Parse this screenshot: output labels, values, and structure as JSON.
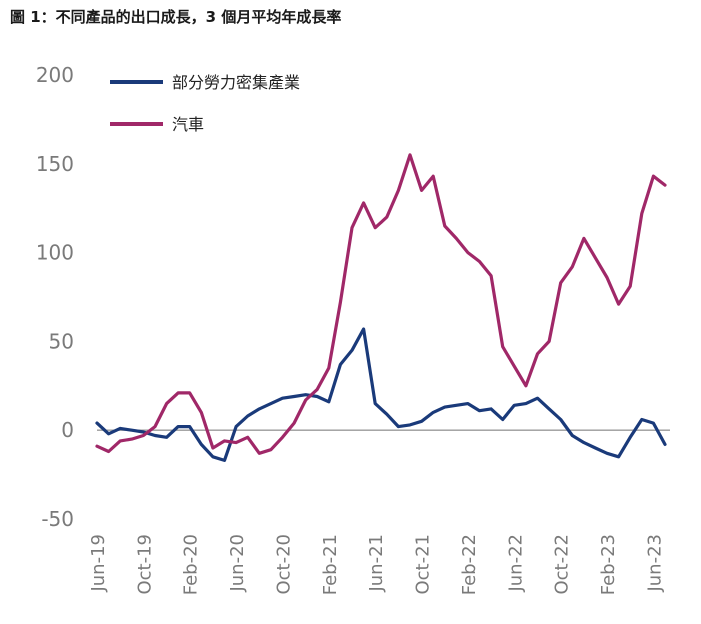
{
  "title": "圖 1：不同產品的出口成長，3 個月平均年成長率",
  "chart_data": {
    "type": "line",
    "ylim": [
      -50,
      200
    ],
    "yticks": [
      "200",
      "150",
      "100",
      "50",
      "0",
      "-50"
    ],
    "ytick_values": [
      200,
      150,
      100,
      50,
      0,
      -50
    ],
    "xtick_labels": [
      "Jun-19",
      "Oct-19",
      "Feb-20",
      "Jun-20",
      "Oct-20",
      "Feb-21",
      "Jun-21",
      "Oct-21",
      "Feb-22",
      "Jun-22",
      "Oct-22",
      "Feb-23",
      "Jun-23"
    ],
    "xtick_index": [
      0,
      4,
      8,
      12,
      16,
      20,
      24,
      28,
      32,
      36,
      40,
      44,
      48
    ],
    "legend_position": "top-left",
    "grid": false,
    "zero_line": true,
    "series": [
      {
        "name": "部分勞力密集產業",
        "color": "#1a3a7a",
        "values": [
          4,
          -2,
          1,
          0,
          -1,
          -3,
          -4,
          2,
          2,
          -8,
          -15,
          -17,
          2,
          8,
          12,
          15,
          18,
          19,
          20,
          19,
          16,
          37,
          45,
          57,
          15,
          9,
          2,
          3,
          5,
          10,
          13,
          14,
          15,
          11,
          12,
          6,
          14,
          15,
          18,
          12,
          6,
          -3,
          -7,
          -10,
          -13,
          -15,
          -4,
          6,
          4,
          -8
        ]
      },
      {
        "name": "汽車",
        "color": "#a02868",
        "values": [
          -9,
          -12,
          -6,
          -5,
          -3,
          2,
          15,
          21,
          21,
          10,
          -10,
          -6,
          -7,
          -4,
          -13,
          -11,
          -4,
          4,
          17,
          23,
          35,
          72,
          114,
          128,
          114,
          120,
          135,
          155,
          135,
          143,
          115,
          108,
          100,
          95,
          87,
          47,
          36,
          25,
          43,
          50,
          83,
          92,
          108,
          97,
          86,
          71,
          81,
          122,
          143,
          138
        ]
      }
    ]
  }
}
